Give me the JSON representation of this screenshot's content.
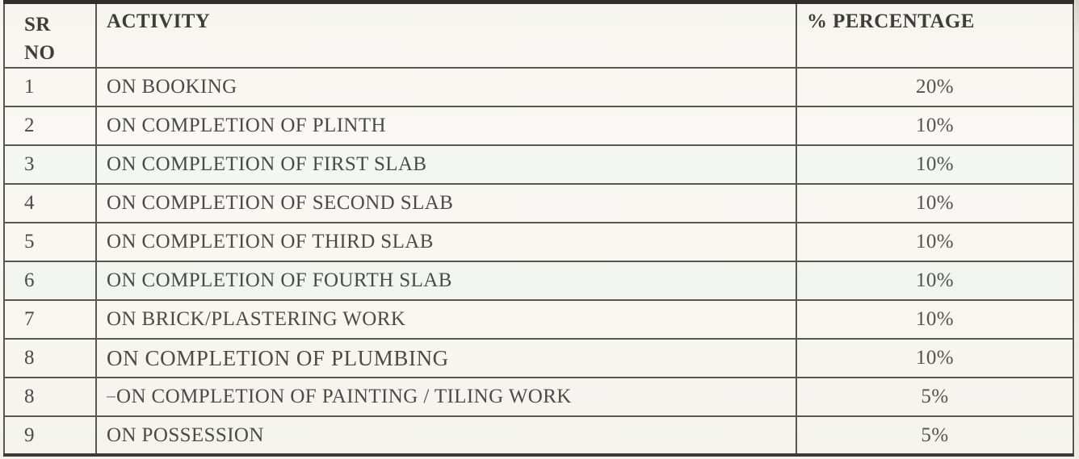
{
  "page": {
    "kind": "scanned-document",
    "background_color": "#f7f6f1",
    "text_color": "#4a4a48",
    "border_color": "#585752"
  },
  "table": {
    "title_semantic": "construction-linked payment schedule",
    "header": {
      "sr_no_line1": "SR",
      "sr_no_line2": "NO",
      "activity": "ACTIVITY",
      "percentage": "% PERCENTAGE"
    },
    "rows": [
      {
        "sr": "1",
        "activity": "ON BOOKING",
        "percentage": "20%"
      },
      {
        "sr": "2",
        "activity": "ON COMPLETION OF PLINTH",
        "percentage": "10%"
      },
      {
        "sr": "3",
        "activity": "ON COMPLETION OF FIRST SLAB",
        "percentage": "10%"
      },
      {
        "sr": "4",
        "activity": "ON COMPLETION OF SECOND SLAB",
        "percentage": "10%"
      },
      {
        "sr": "5",
        "activity": "ON COMPLETION OF THIRD SLAB",
        "percentage": "10%"
      },
      {
        "sr": "6",
        "activity": "ON COMPLETION OF FOURTH SLAB",
        "percentage": "10%"
      },
      {
        "sr": "7",
        "activity": "ON BRICK/PLASTERING WORK",
        "percentage": "10%"
      },
      {
        "sr": "8",
        "activity": "ON COMPLETION OF PLUMBING",
        "percentage": "10%"
      },
      {
        "sr": "8",
        "activity": "ON COMPLETION OF PAINTING / TILING WORK",
        "percentage": "5%"
      },
      {
        "sr": "9",
        "activity": "ON POSSESSION",
        "percentage": "5%"
      }
    ]
  }
}
